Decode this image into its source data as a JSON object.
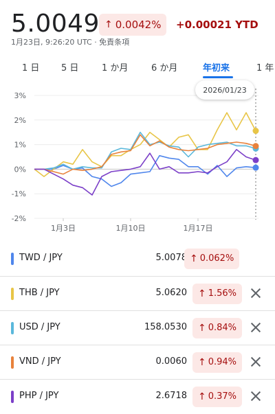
{
  "header": {
    "price": "5.0049",
    "change": "0.0042%",
    "ytd": "+0.00021 YTD",
    "subline": "1月23日, 9:26:20 UTC · 免責条項"
  },
  "tabs": [
    "1 日",
    "5 日",
    "1 か月",
    "6 か月",
    "年初来",
    "1 年"
  ],
  "active_tab": "年初来",
  "tooltip": "2026/01/23",
  "colors": {
    "TWD": "#4f86ec",
    "THB": "#e8c547",
    "USD": "#5ab8db",
    "VND": "#e8823c",
    "PHP": "#7b3fc8",
    "up_bg": "#fce8e6",
    "up_text": "#a50e0e",
    "accent": "#1a73e8"
  },
  "chart_data": {
    "type": "line",
    "y_unit": "%",
    "ylim": [
      -2,
      3
    ],
    "yticks": [
      "3%",
      "2%",
      "1%",
      "0%",
      "-1%",
      "-2%"
    ],
    "ytick_values": [
      3,
      2,
      1,
      0,
      -1,
      -2
    ],
    "xticks": [
      "1月3日",
      "1月10日",
      "1月17日"
    ],
    "xtick_index": [
      3,
      10,
      17
    ],
    "x_count": 24,
    "series": [
      {
        "name": "TWD / JPY",
        "key": "TWD",
        "values": [
          0,
          0,
          0,
          0.15,
          0,
          0.05,
          -0.3,
          -0.4,
          -0.7,
          -0.55,
          -0.2,
          -0.15,
          -0.1,
          0.55,
          0.45,
          0.4,
          0.1,
          0.1,
          -0.2,
          0.15,
          -0.3,
          0.05,
          0.1,
          0.062
        ]
      },
      {
        "name": "THB / JPY",
        "key": "THB",
        "values": [
          0,
          -0.3,
          0,
          0.3,
          0.2,
          0.8,
          0.3,
          0.1,
          0.55,
          0.55,
          0.8,
          1.0,
          1.5,
          1.2,
          0.9,
          1.3,
          1.4,
          0.8,
          0.8,
          1.6,
          2.3,
          1.6,
          2.3,
          1.56
        ]
      },
      {
        "name": "USD / JPY",
        "key": "USD",
        "values": [
          0,
          0,
          0.05,
          0.2,
          0,
          0.1,
          0.05,
          0.05,
          0.7,
          0.85,
          0.8,
          1.5,
          1.0,
          1.1,
          0.95,
          0.9,
          0.5,
          0.9,
          1.0,
          1.05,
          1.1,
          0.95,
          0.95,
          0.84
        ]
      },
      {
        "name": "VND / JPY",
        "key": "VND",
        "values": [
          0,
          0,
          -0.1,
          -0.2,
          0,
          -0.05,
          0,
          0.1,
          0.6,
          0.7,
          0.75,
          1.4,
          0.95,
          1.15,
          0.9,
          0.8,
          0.75,
          0.8,
          0.85,
          1.0,
          1.05,
          1.1,
          1.05,
          0.94
        ]
      },
      {
        "name": "PHP / JPY",
        "key": "PHP",
        "values": [
          0,
          0,
          -0.2,
          -0.4,
          -0.65,
          -0.75,
          -1.05,
          -0.3,
          -0.1,
          -0.05,
          0,
          0.1,
          0.65,
          0,
          0.1,
          -0.15,
          -0.15,
          -0.1,
          -0.15,
          0.1,
          0.3,
          0.8,
          0.5,
          0.37
        ]
      }
    ]
  },
  "rows": [
    {
      "pair": "TWD / JPY",
      "value": "5.0078",
      "pct": "0.062%",
      "closable": false
    },
    {
      "pair": "THB / JPY",
      "value": "5.0620",
      "pct": "1.56%",
      "closable": true
    },
    {
      "pair": "USD / JPY",
      "value": "158.0530",
      "pct": "0.84%",
      "closable": true
    },
    {
      "pair": "VND / JPY",
      "value": "0.0060",
      "pct": "0.94%",
      "closable": true
    },
    {
      "pair": "PHP / JPY",
      "value": "2.6718",
      "pct": "0.37%",
      "closable": true
    }
  ]
}
